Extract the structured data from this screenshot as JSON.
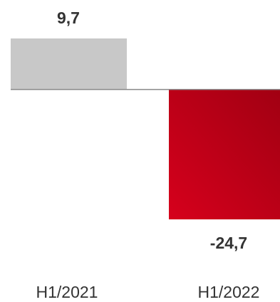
{
  "chart_data": {
    "type": "bar",
    "categories": [
      "H1/2021",
      "H1/2022"
    ],
    "values": [
      9.7,
      -24.7
    ],
    "data_labels": [
      "9,7",
      "-24,7"
    ],
    "title": "",
    "xlabel": "",
    "ylabel": "",
    "ylim": [
      -24.7,
      9.7
    ],
    "grid": false,
    "colors": {
      "positive_bar": "#c8c8c8",
      "negative_bar_light": "#d6001c",
      "negative_bar_dark": "#a00012",
      "baseline": "#888888",
      "text": "#333333"
    }
  }
}
